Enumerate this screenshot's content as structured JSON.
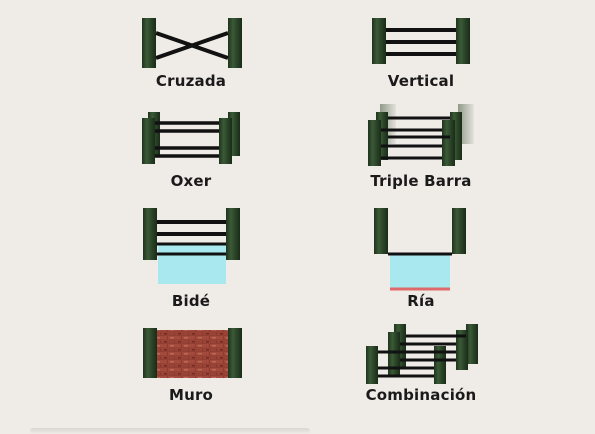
{
  "colors": {
    "background": "#efebe6",
    "post": "#2e4a2b",
    "post_dark": "#1f331d",
    "rail": "#111111",
    "water": "#a8e8ee",
    "ria_edge": "#e06a6a",
    "brick": "#8a3a30"
  },
  "jumps": [
    {
      "id": "cruzada",
      "label": "Cruzada",
      "type": "crossed-rails"
    },
    {
      "id": "vertical",
      "label": "Vertical",
      "type": "vertical"
    },
    {
      "id": "oxer",
      "label": "Oxer",
      "type": "oxer"
    },
    {
      "id": "triple-barra",
      "label": "Triple Barra",
      "type": "triple-bar"
    },
    {
      "id": "bide",
      "label": "Bidé",
      "type": "water-under-rails"
    },
    {
      "id": "ria",
      "label": "Ría",
      "type": "water-ditch"
    },
    {
      "id": "muro",
      "label": "Muro",
      "type": "wall"
    },
    {
      "id": "combinacion",
      "label": "Combinación",
      "type": "combination"
    }
  ]
}
